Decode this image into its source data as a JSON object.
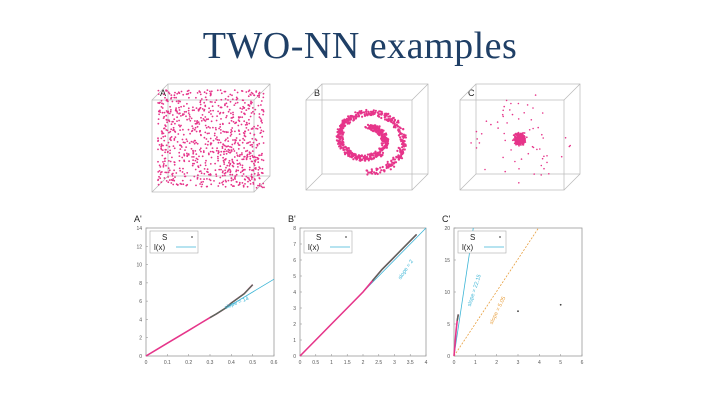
{
  "slide": {
    "title": "TWO-NN examples"
  },
  "colors": {
    "points": "#e6358a",
    "fit_line": "#3cb5d6",
    "slope_line_c": "#e8a040",
    "data_curve": "#556b5a",
    "title": "#1f3f66"
  },
  "top_panels": [
    {
      "letter": "A",
      "shape": "uniform cube"
    },
    {
      "letter": "B",
      "shape": "swiss roll"
    },
    {
      "letter": "C",
      "shape": "dense cluster"
    }
  ],
  "chart_data": [
    {
      "type": "line",
      "panel": "A'",
      "legend": {
        "items": [
          "S",
          "l(x)"
        ],
        "position": "top-left"
      },
      "xlim": [
        0,
        0.6
      ],
      "ylim": [
        0,
        14
      ],
      "xticks": [
        "0",
        "0.1",
        "0.2",
        "0.3",
        "0.4",
        "0.5",
        "0.6"
      ],
      "yticks": [
        "0",
        "2",
        "4",
        "6",
        "8",
        "10",
        "12",
        "14"
      ],
      "annotation": "slope = 14",
      "fit": {
        "slope": 14
      },
      "series": [
        {
          "values": [
            [
              0,
              0
            ],
            [
              0.05,
              0.7
            ],
            [
              0.1,
              1.4
            ],
            [
              0.15,
              2.1
            ],
            [
              0.2,
              2.8
            ],
            [
              0.25,
              3.5
            ],
            [
              0.3,
              4.2
            ],
            [
              0.33,
              4.6
            ],
            [
              0.37,
              5.2
            ],
            [
              0.4,
              5.8
            ],
            [
              0.43,
              6.3
            ],
            [
              0.46,
              6.8
            ],
            [
              0.5,
              7.8
            ]
          ]
        }
      ]
    },
    {
      "type": "line",
      "panel": "B'",
      "legend": {
        "items": [
          "S",
          "l(x)"
        ],
        "position": "top-left"
      },
      "xlim": [
        0,
        4
      ],
      "ylim": [
        0,
        8
      ],
      "xticks": [
        "0",
        "0.5",
        "1",
        "1.5",
        "2",
        "2.5",
        "3",
        "3.5",
        "4"
      ],
      "yticks": [
        "0",
        "1",
        "2",
        "3",
        "4",
        "5",
        "6",
        "7",
        "8"
      ],
      "annotation": "slope = 2",
      "fit": {
        "slope": 2
      },
      "series": [
        {
          "values": [
            [
              0,
              0
            ],
            [
              0.5,
              1
            ],
            [
              1,
              2
            ],
            [
              1.5,
              3
            ],
            [
              2,
              4
            ],
            [
              2.3,
              4.7
            ],
            [
              2.6,
              5.4
            ],
            [
              2.9,
              6
            ],
            [
              3.2,
              6.6
            ],
            [
              3.5,
              7.2
            ],
            [
              3.7,
              7.6
            ]
          ]
        }
      ]
    },
    {
      "type": "line",
      "panel": "C'",
      "legend": {
        "items": [
          "S",
          "l(x)"
        ],
        "position": "top-left"
      },
      "xlim": [
        0,
        6
      ],
      "ylim": [
        0,
        20
      ],
      "xticks": [
        "0",
        "1",
        "2",
        "3",
        "4",
        "5",
        "6"
      ],
      "yticks": [
        "0",
        "5",
        "10",
        "15",
        "20"
      ],
      "annotations": [
        "slope = 22.15",
        "slope = 5.05"
      ],
      "fits": [
        {
          "slope": 22.15
        },
        {
          "slope": 5.05
        }
      ],
      "series": [
        {
          "values": [
            [
              0,
              0
            ],
            [
              0.05,
              2
            ],
            [
              0.1,
              4
            ],
            [
              0.15,
              5.5
            ],
            [
              0.2,
              6.5
            ],
            [
              3,
              7
            ],
            [
              5,
              8
            ]
          ]
        }
      ]
    }
  ]
}
